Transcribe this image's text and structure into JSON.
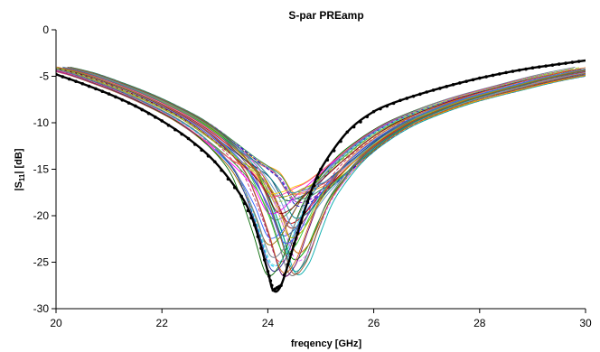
{
  "chart_data": {
    "type": "line",
    "title": "S-par PREamp",
    "xlabel": "freqency [GHz]",
    "ylabel_main": "|S",
    "ylabel_sub": "11",
    "ylabel_tail": "| [dB]",
    "xlim": [
      20,
      30
    ],
    "ylim": [
      -30,
      0
    ],
    "x_ticks": [
      20,
      22,
      24,
      26,
      28,
      30
    ],
    "y_ticks": [
      0,
      -5,
      -10,
      -15,
      -20,
      -25,
      -30
    ],
    "grid": false,
    "legend": "none",
    "reference_series": {
      "color": "#000000",
      "x": [
        20,
        20.5,
        21,
        21.5,
        22,
        22.5,
        23,
        23.5,
        23.75,
        24,
        24.1,
        24.25,
        24.5,
        24.75,
        25,
        25.5,
        26,
        26.5,
        27,
        27.5,
        28,
        28.5,
        29,
        29.5,
        30
      ],
      "y": [
        -4.8,
        -5.8,
        -6.9,
        -8.2,
        -9.8,
        -11.7,
        -14.2,
        -17.9,
        -21.0,
        -26.0,
        -28.0,
        -27.5,
        -23.0,
        -18.5,
        -15.0,
        -11.0,
        -8.8,
        -7.6,
        -6.7,
        -5.9,
        -5.2,
        -4.6,
        -4.1,
        -3.7,
        -3.3
      ]
    },
    "family": {
      "count": 40,
      "x": [
        20,
        20.5,
        21,
        21.5,
        22,
        22.5,
        23,
        23.5,
        23.75,
        24,
        24.25,
        24.5,
        24.75,
        25,
        25.5,
        26,
        26.5,
        27,
        27.5,
        28,
        28.5,
        29,
        29.5,
        30
      ],
      "y": [
        -4.2,
        -4.9,
        -5.9,
        -7.0,
        -8.3,
        -9.8,
        -11.8,
        -14.4,
        -16.3,
        -18.8,
        -22.0,
        -21.5,
        -19.3,
        -17.3,
        -14.3,
        -12.0,
        -10.3,
        -9.1,
        -8.1,
        -7.3,
        -6.6,
        -5.9,
        -5.3,
        -4.8
      ],
      "colors": [
        "#1f3fbf",
        "#c00000",
        "#00a000",
        "#9900cc",
        "#00aaaa",
        "#ff9900",
        "#666666",
        "#003366",
        "#cc3366",
        "#339933",
        "#3366ff",
        "#996600",
        "#ff00ff",
        "#00ccff",
        "#999900",
        "#660066",
        "#ff6666",
        "#009999",
        "#0000cc",
        "#cc6600",
        "#6699cc",
        "#993333",
        "#33cc33",
        "#cc99ff",
        "#333399",
        "#ffcc00",
        "#006600",
        "#ff3399",
        "#66cccc",
        "#800000",
        "#4d4dff",
        "#b3b300",
        "#008080",
        "#e066ff",
        "#2e8b57",
        "#a0522d",
        "#4682b4",
        "#d2691e",
        "#9acd32",
        "#708090"
      ]
    }
  }
}
